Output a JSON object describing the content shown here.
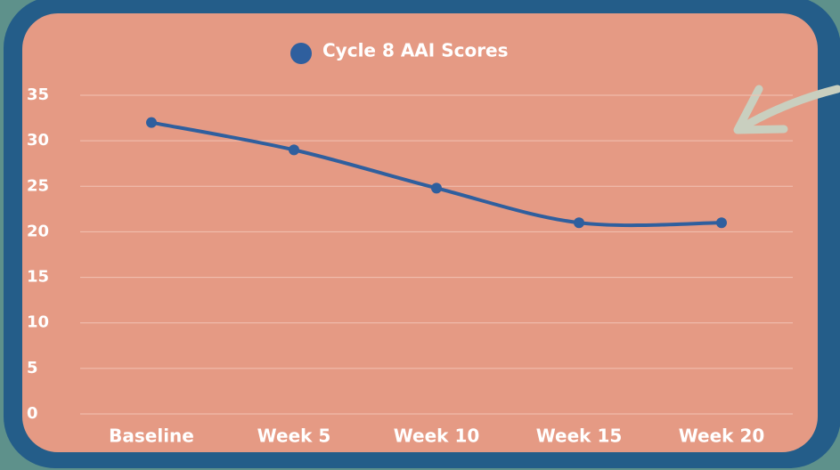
{
  "chart_data": {
    "type": "line",
    "categories": [
      "Baseline",
      "Week 5",
      "Week 10",
      "Week 15",
      "Week 20"
    ],
    "series": [
      {
        "name": "Cycle 8 AAI Scores",
        "color": "#2f5f9e",
        "values": [
          32,
          29,
          24.8,
          21,
          21
        ]
      }
    ],
    "ylim": [
      0,
      35
    ],
    "yticks": [
      0,
      5,
      10,
      15,
      20,
      25,
      30,
      35
    ],
    "grid": true,
    "smooth": true,
    "legend": "top"
  }
}
